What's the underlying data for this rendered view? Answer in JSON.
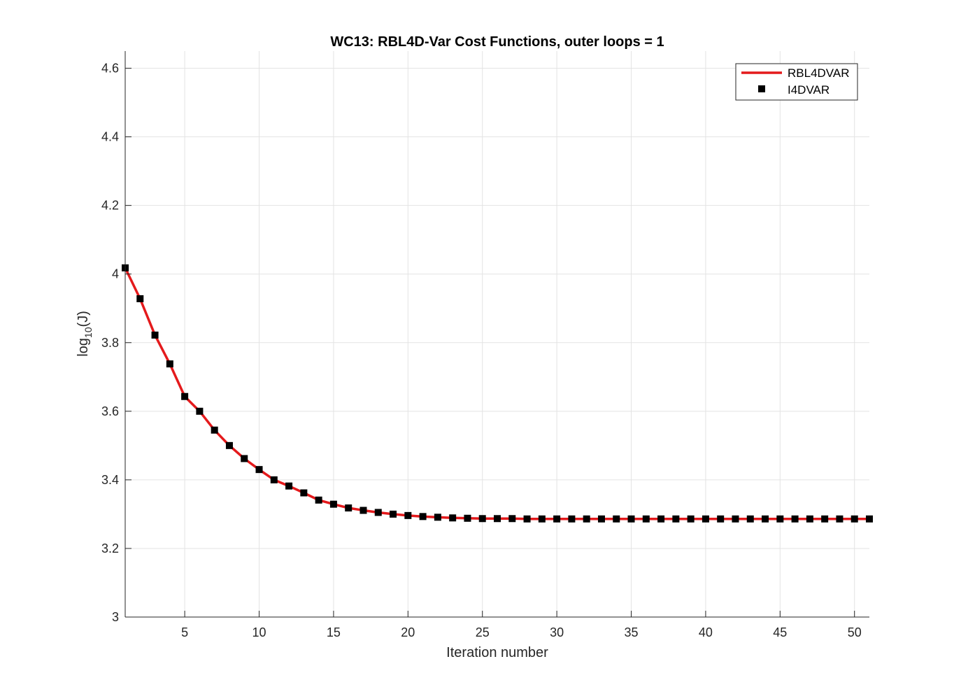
{
  "chart_data": {
    "type": "line",
    "title": "WC13: RBL4D-Var Cost Functions, outer loops = 1",
    "xlabel": "Iteration number",
    "ylabel": {
      "base": "log",
      "subscript": "10",
      "suffix": "(J)"
    },
    "xlim": [
      1,
      51
    ],
    "ylim": [
      3,
      4.65
    ],
    "xticks": [
      5,
      10,
      15,
      20,
      25,
      30,
      35,
      40,
      45,
      50
    ],
    "yticks": [
      3,
      3.2,
      3.4,
      3.6,
      3.8,
      4,
      4.2,
      4.4,
      4.6
    ],
    "ytick_labels": [
      "3",
      "3.2",
      "3.4",
      "3.6",
      "3.8",
      "4",
      "4.2",
      "4.4",
      "4.6"
    ],
    "grid": true,
    "legend_position": "top-right",
    "x": [
      1,
      2,
      3,
      4,
      5,
      6,
      7,
      8,
      9,
      10,
      11,
      12,
      13,
      14,
      15,
      16,
      17,
      18,
      19,
      20,
      21,
      22,
      23,
      24,
      25,
      26,
      27,
      28,
      29,
      30,
      31,
      32,
      33,
      34,
      35,
      36,
      37,
      38,
      39,
      40,
      41,
      42,
      43,
      44,
      45,
      46,
      47,
      48,
      49,
      50,
      51
    ],
    "series": [
      {
        "name": "RBL4DVAR",
        "style": "line",
        "color": "#e41a1c",
        "values": [
          4.018,
          3.928,
          3.822,
          3.738,
          3.643,
          3.6,
          3.545,
          3.5,
          3.462,
          3.43,
          3.4,
          3.382,
          3.362,
          3.341,
          3.329,
          3.318,
          3.311,
          3.305,
          3.3,
          3.296,
          3.293,
          3.291,
          3.289,
          3.288,
          3.287,
          3.287,
          3.287,
          3.286,
          3.286,
          3.286,
          3.286,
          3.286,
          3.286,
          3.286,
          3.286,
          3.286,
          3.286,
          3.286,
          3.286,
          3.286,
          3.286,
          3.286,
          3.286,
          3.286,
          3.286,
          3.286,
          3.286,
          3.286,
          3.286,
          3.286,
          3.286
        ]
      },
      {
        "name": "I4DVAR",
        "style": "markers",
        "color": "#000000",
        "values": [
          4.018,
          3.928,
          3.822,
          3.738,
          3.643,
          3.6,
          3.545,
          3.5,
          3.462,
          3.43,
          3.4,
          3.382,
          3.362,
          3.341,
          3.329,
          3.318,
          3.311,
          3.305,
          3.3,
          3.296,
          3.293,
          3.291,
          3.289,
          3.288,
          3.287,
          3.287,
          3.287,
          3.286,
          3.286,
          3.286,
          3.286,
          3.286,
          3.286,
          3.286,
          3.286,
          3.286,
          3.286,
          3.286,
          3.286,
          3.286,
          3.286,
          3.286,
          3.286,
          3.286,
          3.286,
          3.286,
          3.286,
          3.286,
          3.286,
          3.286,
          3.286
        ]
      }
    ]
  }
}
